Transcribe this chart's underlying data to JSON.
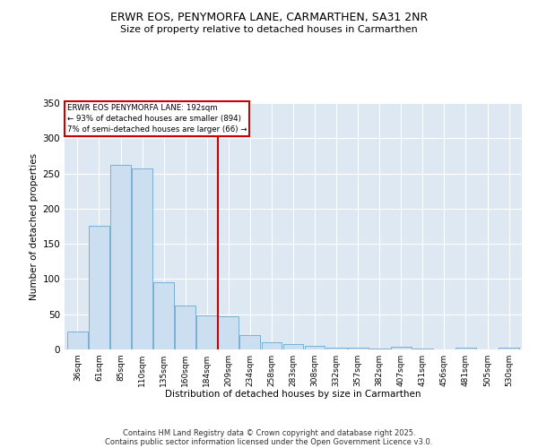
{
  "title": "ERWR EOS, PENYMORFA LANE, CARMARTHEN, SA31 2NR",
  "subtitle": "Size of property relative to detached houses in Carmarthen",
  "xlabel": "Distribution of detached houses by size in Carmarthen",
  "ylabel": "Number of detached properties",
  "bar_facecolor": "#ccdff0",
  "bar_edge_color": "#7ab0d4",
  "categories": [
    "36sqm",
    "61sqm",
    "85sqm",
    "110sqm",
    "135sqm",
    "160sqm",
    "184sqm",
    "209sqm",
    "234sqm",
    "258sqm",
    "283sqm",
    "308sqm",
    "332sqm",
    "357sqm",
    "382sqm",
    "407sqm",
    "431sqm",
    "456sqm",
    "481sqm",
    "505sqm",
    "530sqm"
  ],
  "values": [
    26,
    176,
    262,
    257,
    95,
    63,
    48,
    47,
    20,
    10,
    8,
    5,
    3,
    2,
    1,
    4,
    1,
    0,
    2,
    0,
    2
  ],
  "vline_index": 7,
  "property_line_label": "ERWR EOS PENYMORFA LANE: 192sqm",
  "annotation_line1": "← 93% of detached houses are smaller (894)",
  "annotation_line2": "7% of semi-detached houses are larger (66) →",
  "vline_color": "#cc0000",
  "annotation_box_edgecolor": "#cc0000",
  "ylim": [
    0,
    350
  ],
  "yticks": [
    0,
    50,
    100,
    150,
    200,
    250,
    300,
    350
  ],
  "background_color": "#dde8f2",
  "footer1": "Contains HM Land Registry data © Crown copyright and database right 2025.",
  "footer2": "Contains public sector information licensed under the Open Government Licence v3.0."
}
